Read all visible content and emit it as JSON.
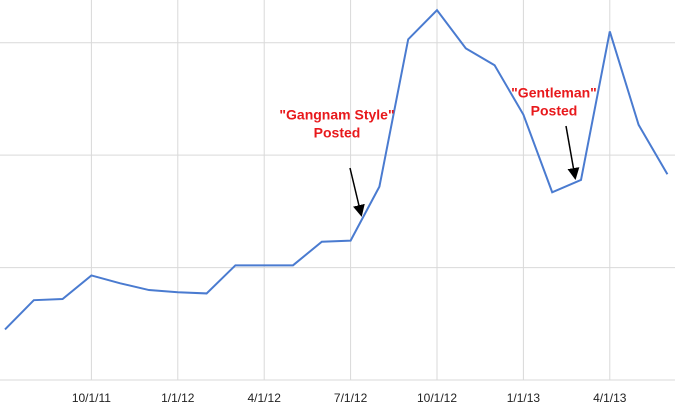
{
  "chart_data": {
    "type": "line",
    "categories": [
      null,
      null,
      null,
      "10/1/11",
      null,
      null,
      "1/1/12",
      null,
      null,
      "4/1/12",
      null,
      null,
      "7/1/12",
      null,
      null,
      "10/1/12",
      null,
      null,
      "1/1/13",
      null,
      null,
      "4/1/13",
      null,
      null
    ],
    "series": [
      {
        "color": "#4a7bd0",
        "values": [
          0.45,
          0.71,
          0.72,
          0.93,
          0.86,
          0.8,
          0.78,
          0.77,
          1.02,
          1.02,
          1.02,
          1.23,
          1.24,
          1.72,
          3.03,
          3.29,
          2.95,
          2.8,
          2.36,
          1.67,
          1.78,
          3.1,
          2.27,
          1.83
        ]
      }
    ],
    "ylim": [
      0,
      3.38
    ],
    "yticks": [
      0,
      1,
      2,
      3
    ],
    "grid": true,
    "annotations": [
      {
        "lines": [
          "\"Gangnam Style\"",
          "Posted"
        ],
        "color": "#e8191c",
        "index": 12
      },
      {
        "lines": [
          "\"Gentleman\"",
          "Posted"
        ],
        "color": "#e8191c",
        "index": 20
      }
    ]
  }
}
